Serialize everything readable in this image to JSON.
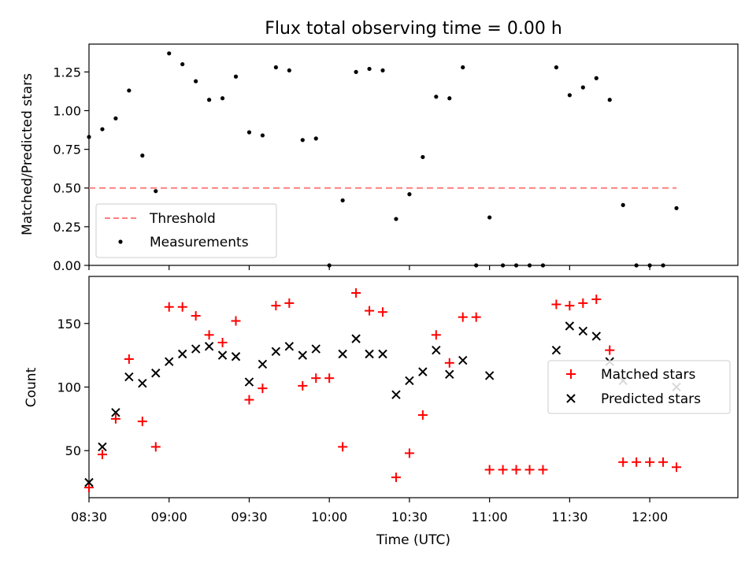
{
  "chart_data": {
    "title": "Flux total observing time = 0.00 h",
    "xlabel": "Time (UTC)",
    "x_ticks": [
      "08:30",
      "09:00",
      "09:30",
      "10:00",
      "10:30",
      "11:00",
      "11:30",
      "12:00"
    ],
    "x_range_minutes": [
      8.5,
      12.55
    ],
    "subplots": [
      {
        "type": "scatter",
        "ylabel": "Matched/Predicted stars",
        "ylim": [
          0,
          1.43
        ],
        "y_ticks": [
          "0.00",
          "0.25",
          "0.50",
          "0.75",
          "1.00",
          "1.25"
        ],
        "legend_position": "lower-left",
        "series": [
          {
            "name": "Threshold",
            "kind": "line",
            "color": "#ff7f7f",
            "x": [
              "08:30",
              "12:10"
            ],
            "y": [
              0.5,
              0.5
            ]
          },
          {
            "name": "Measurements",
            "kind": "points",
            "color": "#000000",
            "x": [
              "08:30",
              "08:35",
              "08:40",
              "08:45",
              "08:50",
              "08:55",
              "09:00",
              "09:05",
              "09:10",
              "09:15",
              "09:20",
              "09:25",
              "09:30",
              "09:35",
              "09:40",
              "09:45",
              "09:50",
              "09:55",
              "10:00",
              "10:05",
              "10:10",
              "10:15",
              "10:20",
              "10:25",
              "10:30",
              "10:35",
              "10:40",
              "10:45",
              "10:50",
              "10:55",
              "11:00",
              "11:05",
              "11:10",
              "11:15",
              "11:20",
              "11:25",
              "11:30",
              "11:35",
              "11:40",
              "11:45",
              "11:50",
              "11:55",
              "12:00",
              "12:05",
              "12:10"
            ],
            "y": [
              0.83,
              0.88,
              0.95,
              1.13,
              0.71,
              0.48,
              1.37,
              1.3,
              1.19,
              1.07,
              1.08,
              1.22,
              0.86,
              0.84,
              1.28,
              1.26,
              0.81,
              0.82,
              0.0,
              0.42,
              1.25,
              1.27,
              1.26,
              0.3,
              0.46,
              0.7,
              1.09,
              1.08,
              1.28,
              0.0,
              0.31,
              0.0,
              0.0,
              0.0,
              0.0,
              1.28,
              1.1,
              1.15,
              1.21,
              1.07,
              0.39,
              0.0,
              0.0,
              0.0,
              0.37
            ]
          }
        ]
      },
      {
        "type": "scatter",
        "ylabel": "Count",
        "ylim": [
          13,
          187
        ],
        "y_ticks": [
          "50",
          "100",
          "150"
        ],
        "legend_position": "center-right",
        "series": [
          {
            "name": "Matched stars",
            "marker": "plus",
            "color": "#ff0000",
            "x": [
              "08:30",
              "08:35",
              "08:40",
              "08:45",
              "08:50",
              "08:55",
              "09:00",
              "09:05",
              "09:10",
              "09:15",
              "09:20",
              "09:25",
              "09:30",
              "09:35",
              "09:40",
              "09:45",
              "09:50",
              "09:55",
              "10:00",
              "10:05",
              "10:10",
              "10:15",
              "10:20",
              "10:25",
              "10:30",
              "10:35",
              "10:40",
              "10:45",
              "10:50",
              "10:55",
              "11:00",
              "11:05",
              "11:10",
              "11:15",
              "11:20",
              "11:25",
              "11:30",
              "11:35",
              "11:40",
              "11:45",
              "11:50",
              "11:55",
              "12:00",
              "12:05",
              "12:10"
            ],
            "y": [
              21,
              47,
              75,
              122,
              73,
              53,
              163,
              163,
              156,
              141,
              135,
              152,
              90,
              99,
              164,
              166,
              101,
              107,
              107,
              53,
              174,
              160,
              159,
              29,
              48,
              78,
              141,
              119,
              155,
              155,
              35,
              35,
              35,
              35,
              35,
              165,
              164,
              166,
              169,
              129,
              41,
              41,
              41,
              41,
              37
            ]
          },
          {
            "name": "Predicted stars",
            "marker": "x",
            "color": "#000000",
            "x": [
              "08:30",
              "08:35",
              "08:40",
              "08:45",
              "08:50",
              "08:55",
              "09:00",
              "09:05",
              "09:10",
              "09:15",
              "09:20",
              "09:25",
              "09:30",
              "09:35",
              "09:40",
              "09:45",
              "09:50",
              "09:55",
              "10:05",
              "10:10",
              "10:15",
              "10:20",
              "10:25",
              "10:30",
              "10:35",
              "10:40",
              "10:45",
              "10:50",
              "11:00",
              "11:25",
              "11:30",
              "11:35",
              "11:40",
              "11:45",
              "11:50",
              "12:10"
            ],
            "y": [
              25,
              53,
              80,
              108,
              103,
              111,
              120,
              126,
              130,
              132,
              125,
              124,
              104,
              118,
              128,
              132,
              125,
              130,
              126,
              138,
              126,
              126,
              94,
              105,
              112,
              129,
              110,
              121,
              109,
              129,
              148,
              144,
              140,
              120,
              105,
              100
            ]
          }
        ]
      }
    ]
  }
}
